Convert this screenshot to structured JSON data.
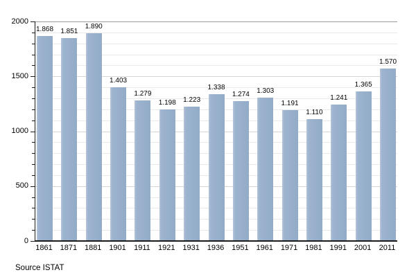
{
  "source": {
    "label": "Source ISTAT"
  },
  "chart_data": {
    "type": "bar",
    "title": "",
    "xlabel": "",
    "ylabel": "",
    "categories": [
      "1861",
      "1871",
      "1881",
      "1901",
      "1911",
      "1921",
      "1931",
      "1936",
      "1951",
      "1961",
      "1971",
      "1981",
      "1991",
      "2001",
      "2011"
    ],
    "values": [
      1868,
      1851,
      1890,
      1403,
      1279,
      1198,
      1223,
      1338,
      1274,
      1303,
      1191,
      1110,
      1241,
      1365,
      1570
    ],
    "value_labels": [
      "1.868",
      "1.851",
      "1.890",
      "1.403",
      "1.279",
      "1.198",
      "1.223",
      "1.338",
      "1.274",
      "1.303",
      "1.191",
      "1.110",
      "1.241",
      "1.365",
      "1.570"
    ],
    "ylim": [
      0,
      2000
    ],
    "ytick_major": [
      0,
      500,
      1000,
      1500,
      2000
    ],
    "ytick_minor_step": 100,
    "grid": "horizontal-minor-and-major",
    "legend": "none",
    "source": "Source ISTAT",
    "colors": {
      "bar_fill": "#9bb2cd",
      "bar_highlight": "#b5c5d8",
      "grid_minor": "#e9e9e9",
      "grid_major": "#d4d4d4",
      "grid_top": "#9a9a9a",
      "axis": "#1a1a1a",
      "background": "#ffffff",
      "text": "#000000"
    }
  }
}
